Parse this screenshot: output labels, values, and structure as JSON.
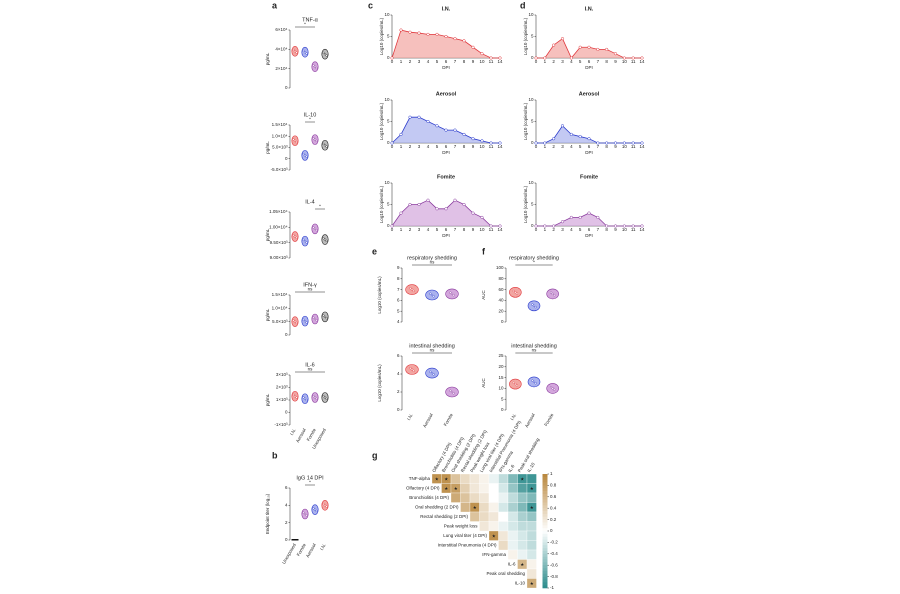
{
  "figure": {
    "a": {
      "letter": "a",
      "ylabel": "pg/mL",
      "groups": [
        "I.N.",
        "Aerosol",
        "Fomite",
        "Unexposed"
      ],
      "plots": [
        {
          "title": "TNF-α",
          "yticks": [
            0,
            {
              "value": 20000,
              "label": "2×10⁴"
            },
            {
              "value": 40000,
              "label": "4×10⁴"
            },
            {
              "value": 60000,
              "label": "6×10⁴"
            }
          ],
          "values": [
            38000,
            37000,
            22000,
            35000
          ],
          "sig": "*",
          "sig_span": [
            0,
            2
          ]
        },
        {
          "title": "IL-10",
          "yticks": [
            {
              "value": -5000,
              "label": "-5.0×10³"
            },
            0,
            {
              "value": 5000,
              "label": "5.0×10³"
            },
            {
              "value": 10000,
              "label": "1.0×10⁴"
            },
            {
              "value": 15000,
              "label": "1.5×10⁴"
            }
          ],
          "values": [
            8000,
            1500,
            8500,
            6000
          ],
          "sig": "*",
          "sig_span": [
            1,
            2
          ]
        },
        {
          "title": "IL-4",
          "yticks": [
            {
              "value": 9000,
              "label": "9.00×10³"
            },
            {
              "value": 9500,
              "label": "9.50×10³"
            },
            {
              "value": 10000,
              "label": "1.00×10⁴"
            },
            {
              "value": 10500,
              "label": "1.05×10⁴"
            }
          ],
          "values": [
            9700,
            9550,
            9950,
            9600
          ],
          "sig": "*",
          "sig_span": [
            2,
            3
          ]
        },
        {
          "title": "IFN-γ",
          "yticks": [
            0,
            {
              "value": 5000,
              "label": "5.0×10³"
            },
            {
              "value": 10000,
              "label": "1.0×10⁴"
            },
            {
              "value": 15000,
              "label": "1.5×10⁴"
            }
          ],
          "values": [
            5000,
            5200,
            6000,
            6800
          ],
          "sig": "ns",
          "sig_span": [
            0,
            3
          ]
        },
        {
          "title": "IL-6",
          "yticks": [
            {
              "value": -1000,
              "label": "-1×10³"
            },
            0,
            {
              "value": 1000,
              "label": "1×10³"
            },
            {
              "value": 2000,
              "label": "2×10³"
            },
            {
              "value": 3000,
              "label": "3×10³"
            }
          ],
          "values": [
            1300,
            1100,
            1200,
            1200
          ],
          "sig": "ns",
          "sig_span": [
            0,
            3
          ]
        }
      ]
    },
    "b": {
      "letter": "b",
      "ylabel": "Endpoint titer (log₁₀)",
      "groups": [
        "Unexposed",
        "Fomite",
        "Aerosol",
        "I.N."
      ],
      "plots": [
        {
          "title": "IgG 14 DPI",
          "yticks": [
            0,
            2,
            4,
            6
          ],
          "values": [
            0,
            3,
            3.5,
            4
          ],
          "sig": "*",
          "sig_span": [
            1,
            2
          ]
        }
      ]
    },
    "c": {
      "letter": "c",
      "ylabel": "Log10 (copies/mL)",
      "xlabel": "DPI",
      "categories": [
        "0",
        "1",
        "2",
        "3",
        "4",
        "5",
        "6",
        "7",
        "8",
        "9",
        "10",
        "11",
        "14"
      ],
      "yticks": [
        0,
        5,
        10
      ],
      "plots": [
        {
          "title": "I.N.",
          "values": [
            0,
            6.5,
            6,
            5.8,
            5.5,
            5.5,
            5,
            4.5,
            4,
            2.5,
            1,
            0,
            0
          ]
        },
        {
          "title": "Aerosol",
          "values": [
            0,
            2,
            6,
            6,
            5,
            4,
            3,
            3,
            2,
            1,
            0.5,
            0,
            0
          ]
        },
        {
          "title": "Fomite",
          "values": [
            0,
            3,
            5,
            5,
            6,
            4,
            4,
            6,
            5,
            3,
            2,
            0,
            0
          ]
        }
      ]
    },
    "d": {
      "letter": "d",
      "ylabel": "Log10 (copies/mL)",
      "xlabel": "DPI",
      "categories": [
        "0",
        "1",
        "2",
        "3",
        "4",
        "5",
        "6",
        "7",
        "8",
        "9",
        "10",
        "11",
        "14"
      ],
      "yticks": [
        0,
        5,
        10
      ],
      "plots": [
        {
          "title": "I.N.",
          "values": [
            0,
            0,
            3,
            4.5,
            0,
            2.5,
            2.5,
            2,
            2,
            1,
            0,
            0,
            0
          ]
        },
        {
          "title": "Aerosol",
          "values": [
            0,
            0,
            1,
            4,
            2,
            1.5,
            1,
            0,
            0,
            0,
            0,
            0,
            0
          ]
        },
        {
          "title": "Fomite",
          "values": [
            0,
            0,
            0,
            1,
            2,
            2,
            3,
            2,
            0,
            0,
            0,
            0,
            0
          ]
        }
      ]
    },
    "e": {
      "letter": "e",
      "ylabel": "Log10 (copies/mL)",
      "groups": [
        "I.N.",
        "Aerosol",
        "Fomite"
      ],
      "plots": [
        {
          "title": "respiratory shedding",
          "yticks": [
            4,
            5,
            6,
            7,
            8,
            9
          ],
          "values": [
            7,
            6.5,
            6.6
          ],
          "sig": "ns",
          "sig_span": [
            0,
            2
          ]
        },
        {
          "title": "intestinal shedding",
          "yticks": [
            0,
            2,
            4,
            6
          ],
          "values": [
            4.5,
            4.1,
            2
          ],
          "sig": "ns",
          "sig_span": [
            0,
            2
          ]
        }
      ]
    },
    "f": {
      "letter": "f",
      "ylabel": "AUC",
      "groups": [
        "I.N.",
        "Aerosol",
        "Fomite"
      ],
      "plots": [
        {
          "title": "respiratory shedding",
          "yticks": [
            0,
            20,
            40,
            60,
            80,
            100
          ],
          "values": [
            55,
            30,
            52
          ],
          "sig": "*",
          "sig_span": [
            0,
            2
          ]
        },
        {
          "title": "intestinal shedding",
          "yticks": [
            0,
            5,
            10,
            15,
            20,
            25
          ],
          "values": [
            12,
            13,
            10
          ],
          "sig": "ns",
          "sig_span": [
            0,
            2
          ]
        }
      ]
    },
    "g": {
      "letter": "g",
      "star_symbol": "★",
      "columns": [
        "Olfactory (4 DPI)",
        "Bronchiolitis (4 DPI)",
        "Oral shedding (2 DPI)",
        "Rectal shedding (2 DPI)",
        "Peak weight loss",
        "Lung viral titer (4 DPI)",
        "Interstitial Pneumonia (4 DPI)",
        "IFN-gamma",
        "IL-6",
        "Peak oral shedding",
        "IL-10"
      ],
      "rows": [
        {
          "name": "TNF-alpha",
          "values": [
            0.9,
            0.9,
            0.5,
            0.3,
            0.2,
            0.1,
            -0.1,
            -0.3,
            -0.6,
            -0.9,
            -0.9
          ],
          "stars": [
            0,
            1,
            9
          ]
        },
        {
          "name": "Olfactory (4 DPI)",
          "values": [
            0.9,
            0.8,
            0.4,
            0.2,
            0.1,
            0,
            -0.2,
            -0.5,
            -0.8,
            -0.9
          ],
          "stars": [
            0,
            1,
            9
          ]
        },
        {
          "name": "Bronchiolitis (4 DPI)",
          "values": [
            0.7,
            0.5,
            0.3,
            0.2,
            0,
            -0.1,
            -0.3,
            -0.5,
            -0.6
          ],
          "stars": []
        },
        {
          "name": "Oral shedding (2 DPI)",
          "values": [
            0.6,
            0.9,
            0.3,
            0.1,
            -0.2,
            -0.4,
            -0.6,
            -0.9
          ],
          "stars": [
            1,
            7
          ]
        },
        {
          "name": "Rectal shedding (2 DPI)",
          "values": [
            0.5,
            0.3,
            0.2,
            0,
            -0.2,
            -0.4,
            -0.5
          ],
          "stars": []
        },
        {
          "name": "Peak weight loss",
          "values": [
            0.2,
            0.1,
            -0.1,
            -0.2,
            -0.3,
            -0.3
          ],
          "stars": []
        },
        {
          "name": "Lung viral titer (4 DPI)",
          "values": [
            0.9,
            0.2,
            -0.1,
            -0.2,
            -0.3
          ],
          "stars": [
            0
          ]
        },
        {
          "name": "Interstitial Pneumonia (4 DPI)",
          "values": [
            0.3,
            -0.1,
            -0.2,
            -0.3
          ],
          "stars": []
        },
        {
          "name": "IFN-gamma",
          "values": [
            0.1,
            -0.1,
            -0.2
          ],
          "stars": []
        },
        {
          "name": "IL-6",
          "values": [
            0.6,
            0.1
          ],
          "stars": [
            0
          ]
        },
        {
          "name": "Peak oral shedding",
          "values": [
            0.2
          ],
          "stars": []
        },
        {
          "name": "IL-10",
          "values": [
            0.7
          ],
          "stars": [
            0
          ]
        }
      ],
      "colorbar_ticks": [
        1,
        0.8,
        0.6,
        0.4,
        0.2,
        0,
        -0.2,
        -0.4,
        -0.6,
        -0.8,
        -1
      ]
    }
  }
}
